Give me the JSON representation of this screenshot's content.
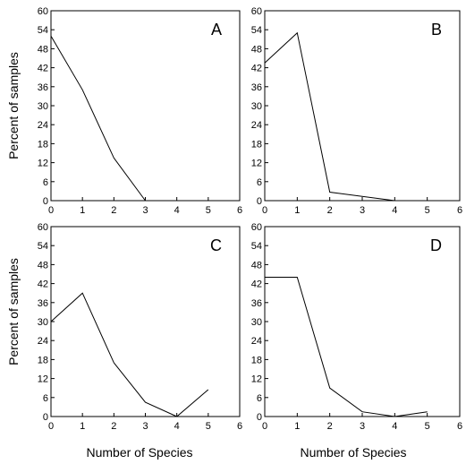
{
  "figure": {
    "ylabel": "Percent of samples",
    "xlabel": "Number of Species"
  },
  "chart_data": [
    {
      "type": "line",
      "panel": "A",
      "x": [
        0,
        1,
        2,
        3
      ],
      "values": [
        52,
        35,
        13.5,
        0
      ],
      "xlim": [
        0,
        6
      ],
      "ylim": [
        0,
        60
      ],
      "xticks": [
        "0",
        "1",
        "2",
        "3",
        "4",
        "5",
        "6"
      ],
      "yticks": [
        "0",
        "6",
        "12",
        "18",
        "24",
        "30",
        "36",
        "42",
        "48",
        "54",
        "60"
      ]
    },
    {
      "type": "line",
      "panel": "B",
      "x": [
        0,
        1,
        2,
        4
      ],
      "values": [
        43.5,
        53,
        2.7,
        0
      ],
      "xlim": [
        0,
        6
      ],
      "ylim": [
        0,
        60
      ],
      "xticks": [
        "0",
        "1",
        "2",
        "3",
        "4",
        "5",
        "6"
      ],
      "yticks": [
        "0",
        "6",
        "12",
        "18",
        "24",
        "30",
        "36",
        "42",
        "48",
        "54",
        "60"
      ]
    },
    {
      "type": "line",
      "panel": "C",
      "x": [
        0,
        1,
        2,
        3,
        4,
        5
      ],
      "values": [
        30,
        39,
        17,
        4.5,
        0,
        8.5
      ],
      "xlim": [
        0,
        6
      ],
      "ylim": [
        0,
        60
      ],
      "xticks": [
        "0",
        "1",
        "2",
        "3",
        "4",
        "5",
        "6"
      ],
      "yticks": [
        "0",
        "6",
        "12",
        "18",
        "24",
        "30",
        "36",
        "42",
        "48",
        "54",
        "60"
      ]
    },
    {
      "type": "line",
      "panel": "D",
      "x": [
        0,
        1,
        2,
        3,
        4,
        5
      ],
      "values": [
        44,
        44,
        9,
        1.5,
        0,
        1.5
      ],
      "xlim": [
        0,
        6
      ],
      "ylim": [
        0,
        60
      ],
      "xticks": [
        "0",
        "1",
        "2",
        "3",
        "4",
        "5",
        "6"
      ],
      "yticks": [
        "0",
        "6",
        "12",
        "18",
        "24",
        "30",
        "36",
        "42",
        "48",
        "54",
        "60"
      ]
    }
  ]
}
